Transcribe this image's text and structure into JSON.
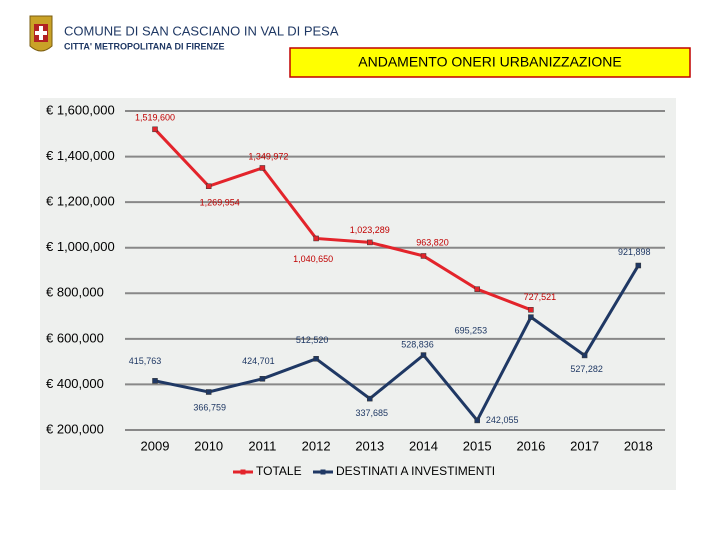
{
  "header": {
    "title": "COMUNE DI SAN CASCIANO IN VAL DI PESA",
    "subtitle": "CITTA' METROPOLITANA DI FIRENZE"
  },
  "chart_data": {
    "type": "line",
    "title": "ANDAMENTO ONERI URBANIZZAZIONE",
    "categories": [
      "2009",
      "2010",
      "2011",
      "2012",
      "2013",
      "2014",
      "2015",
      "2016",
      "2017",
      "2018"
    ],
    "series": [
      {
        "name": "TOTALE",
        "color": "#e3242b",
        "values": [
          1519600,
          1269954,
          1349972,
          1040650,
          1023289,
          963820,
          818000,
          727521,
          null,
          null
        ],
        "value_labels": [
          "1,519,600",
          "1,269,954",
          "1,349,972",
          "1,040,650",
          "1,023,289",
          "963,820",
          null,
          "727,521",
          null,
          null
        ]
      },
      {
        "name": "DESTINATI A INVESTIMENTI",
        "color": "#1f3864",
        "values": [
          415763,
          366759,
          424701,
          512520,
          337685,
          528836,
          242055,
          695253,
          527282,
          921898
        ],
        "value_labels": [
          "415,763",
          "366,759",
          "424,701",
          "512,520",
          "337,685",
          "528,836",
          "242,055",
          "695,253",
          "527,282",
          "921,898"
        ]
      }
    ],
    "ylim": [
      200000,
      1600000
    ],
    "yticks": [
      {
        "value": 200000,
        "label": "€ 200,000"
      },
      {
        "value": 400000,
        "label": "€ 400,000"
      },
      {
        "value": 600000,
        "label": "€ 600,000"
      },
      {
        "value": 800000,
        "label": "€ 800,000"
      },
      {
        "value": 1000000,
        "label": "€ 1,000,000"
      },
      {
        "value": 1200000,
        "label": "€ 1,200,000"
      },
      {
        "value": 1400000,
        "label": "€ 1,400,000"
      },
      {
        "value": 1600000,
        "label": "€ 1,600,000"
      }
    ],
    "grid": true,
    "legend": "bottom"
  }
}
